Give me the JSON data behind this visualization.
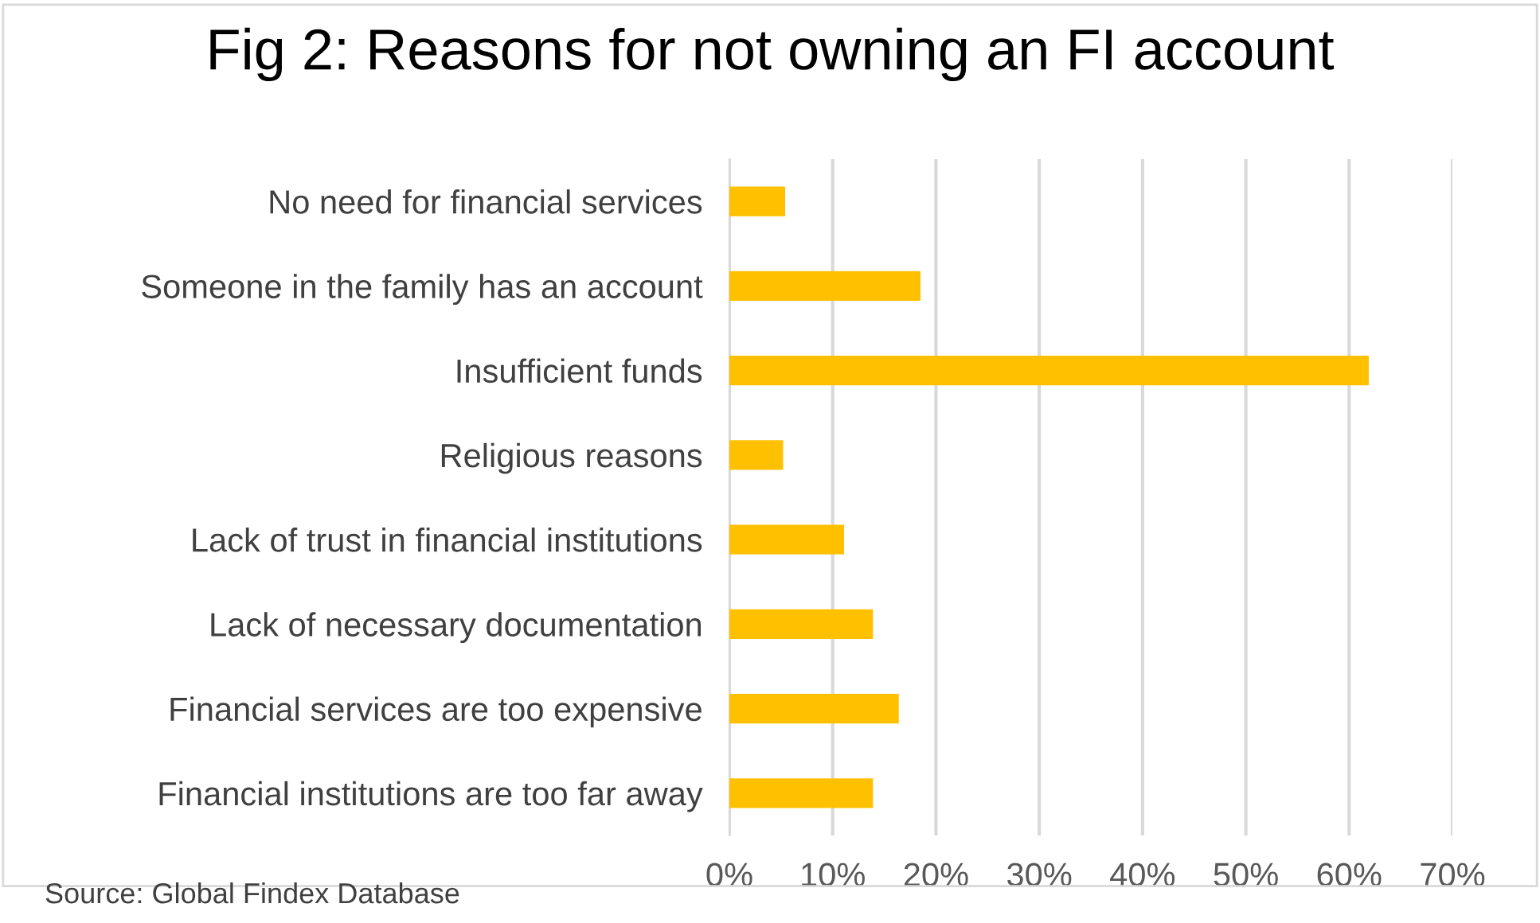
{
  "chart_data": {
    "type": "bar",
    "orientation": "horizontal",
    "title": "Fig 2: Reasons for not owning an FI account",
    "categories": [
      "No need for financial services",
      "Someone in the family has an account",
      "Insufficient funds",
      "Religious reasons",
      "Lack of trust in financial institutions",
      "Lack of necessary documentation",
      "Financial services are too expensive",
      "Financial institutions are too far away"
    ],
    "values": [
      5.4,
      18.5,
      61.9,
      5.2,
      11.1,
      13.9,
      16.4,
      13.9
    ],
    "color": "#ffc000",
    "xlim": [
      0,
      70
    ],
    "xticks": [
      {
        "value": 0,
        "label": "0%"
      },
      {
        "value": 10,
        "label": "10%"
      },
      {
        "value": 20,
        "label": "20%"
      },
      {
        "value": 30,
        "label": "30%"
      },
      {
        "value": 40,
        "label": "40%"
      },
      {
        "value": 50,
        "label": "50%"
      },
      {
        "value": 60,
        "label": "60%"
      },
      {
        "value": 70,
        "label": "70%"
      }
    ],
    "grid": "x",
    "annotations": [
      "Source: Global Findex Database"
    ]
  }
}
